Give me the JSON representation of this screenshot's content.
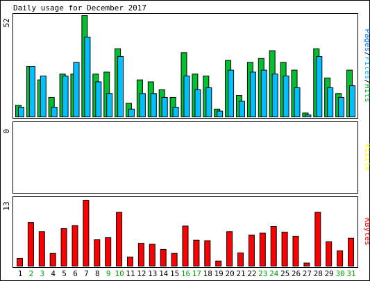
{
  "chart_data": {
    "type": "bar",
    "title": "Daily usage for December 2017",
    "categories": [
      "1",
      "2",
      "3",
      "4",
      "5",
      "6",
      "7",
      "8",
      "9",
      "10",
      "11",
      "12",
      "13",
      "14",
      "15",
      "16",
      "17",
      "18",
      "19",
      "20",
      "21",
      "22",
      "23",
      "24",
      "25",
      "26",
      "27",
      "28",
      "29",
      "30",
      "31"
    ],
    "weekend_days": [
      "2",
      "3",
      "9",
      "10",
      "16",
      "17",
      "23",
      "24",
      "30",
      "31"
    ],
    "panels": [
      {
        "name": "Pages/Files/Hits",
        "ymax_label": "52",
        "ylim": [
          0,
          52
        ],
        "right_label_parts": [
          {
            "text": "Pages",
            "color": "#0080ff"
          },
          {
            "text": "/",
            "color": "#000000"
          },
          {
            "text": "Files",
            "color": "#00c0ff"
          },
          {
            "text": "/",
            "color": "#000000"
          },
          {
            "text": "Hits",
            "color": "#00c030"
          }
        ],
        "series": [
          {
            "name": "Hits",
            "color": "#00c030",
            "values": [
              6,
              26,
              19,
              10,
              22,
              22,
              52,
              22,
              23,
              35,
              7,
              19,
              18,
              14,
              10,
              33,
              22,
              21,
              4,
              29,
              11,
              28,
              30,
              34,
              28,
              24,
              2,
              35,
              20,
              12,
              24
            ]
          },
          {
            "name": "Files",
            "color": "#00c0ff",
            "values": [
              5,
              26,
              21,
              5,
              21,
              28,
              41,
              18,
              12,
              31,
              4,
              12,
              12,
              10,
              5,
              21,
              14,
              15,
              3,
              24,
              8,
              23,
              24,
              22,
              21,
              15,
              1,
              31,
              15,
              10,
              16
            ]
          }
        ]
      },
      {
        "name": "Visits",
        "ymax_label": "0",
        "ylim": [
          0,
          1
        ],
        "right_label_parts": [
          {
            "text": "Visits",
            "color": "#ffff00"
          }
        ],
        "series": []
      },
      {
        "name": "KBytes",
        "ymax_label": "13",
        "ylim": [
          0,
          13
        ],
        "right_label_parts": [
          {
            "text": "KBytes",
            "color": "#ff0000"
          }
        ],
        "series": [
          {
            "name": "KBytes",
            "color": "#ff0000",
            "values": [
              1.5,
              8.6,
              6.8,
              2.5,
              7.4,
              8.0,
              13,
              5.2,
              5.6,
              10.6,
              1.8,
              4.5,
              4.3,
              3.3,
              2.5,
              7.9,
              5.1,
              5.0,
              1.0,
              6.8,
              2.6,
              6.1,
              6.5,
              7.8,
              6.7,
              5.9,
              0.6,
              10.6,
              4.8,
              3.0,
              5.5
            ]
          }
        ]
      }
    ],
    "colors": {
      "weekday_label": "#000000",
      "weekend_label": "#00a000",
      "bar_border": "#000000",
      "panel_border": "#000000"
    }
  }
}
